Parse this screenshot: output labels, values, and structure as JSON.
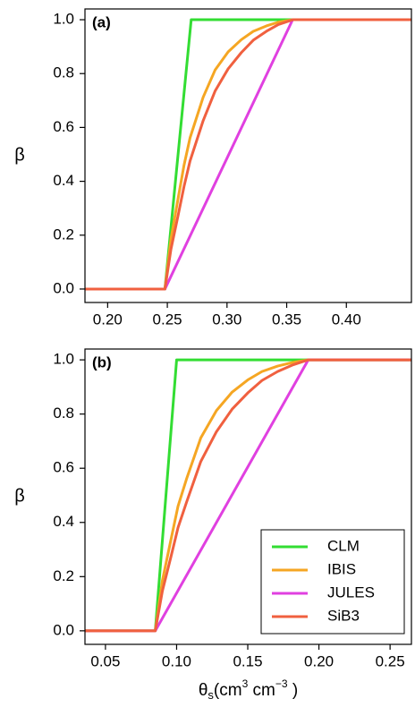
{
  "chart_data": [
    {
      "type": "line",
      "panel_label": "(a)",
      "ylabel": "β",
      "xlim": [
        0.181,
        0.4545
      ],
      "ylim": [
        -0.05,
        1.04
      ],
      "xticks": [
        {
          "value": 0.2,
          "label": "0.20"
        },
        {
          "value": 0.25,
          "label": "0.25"
        },
        {
          "value": 0.3,
          "label": "0.30"
        },
        {
          "value": 0.35,
          "label": "0.35"
        },
        {
          "value": 0.4,
          "label": "0.40"
        }
      ],
      "yticks": [
        {
          "value": 0,
          "label": "0.0"
        },
        {
          "value": 0.2,
          "label": "0.2"
        },
        {
          "value": 0.4,
          "label": "0.4"
        },
        {
          "value": 0.6,
          "label": "0.6"
        },
        {
          "value": 0.8,
          "label": "0.8"
        },
        {
          "value": 1,
          "label": "1.0"
        }
      ],
      "legend": false,
      "series": [
        {
          "name": "CLM",
          "color": "#33dd33",
          "x": [
            0.181,
            0.248,
            0.27,
            0.4545
          ],
          "values": [
            0,
            0,
            1,
            1
          ]
        },
        {
          "name": "IBIS",
          "color": "#f5a623",
          "x": [
            0.181,
            0.248,
            0.253,
            0.259,
            0.264,
            0.269,
            0.28,
            0.29,
            0.301,
            0.312,
            0.322,
            0.333,
            0.343,
            0.355,
            0.4545
          ],
          "values": [
            0,
            0,
            0.185,
            0.336,
            0.46,
            0.561,
            0.712,
            0.813,
            0.881,
            0.926,
            0.957,
            0.977,
            0.991,
            1,
            1
          ]
        },
        {
          "name": "JULES",
          "color": "#e040e0",
          "x": [
            0.181,
            0.248,
            0.355,
            0.4545
          ],
          "values": [
            0,
            0,
            1,
            1
          ]
        },
        {
          "name": "SiB3",
          "color": "#f0603f",
          "x": [
            0.181,
            0.248,
            0.253,
            0.259,
            0.264,
            0.269,
            0.28,
            0.29,
            0.301,
            0.312,
            0.322,
            0.333,
            0.343,
            0.355,
            0.4545
          ],
          "values": [
            0,
            0,
            0.147,
            0.273,
            0.381,
            0.475,
            0.625,
            0.735,
            0.818,
            0.878,
            0.924,
            0.957,
            0.982,
            1,
            1
          ]
        }
      ]
    },
    {
      "type": "line",
      "panel_label": "(b)",
      "ylabel": "β",
      "xlabel": [
        "θ",
        "s",
        "(cm",
        "3",
        " cm",
        "−3",
        " )"
      ],
      "xlim": [
        0.0356,
        0.265
      ],
      "ylim": [
        -0.05,
        1.04
      ],
      "xticks": [
        {
          "value": 0.05,
          "label": "0.05"
        },
        {
          "value": 0.1,
          "label": "0.10"
        },
        {
          "value": 0.15,
          "label": "0.15"
        },
        {
          "value": 0.2,
          "label": "0.20"
        },
        {
          "value": 0.25,
          "label": "0.25"
        }
      ],
      "yticks": [
        {
          "value": 0,
          "label": "0.0"
        },
        {
          "value": 0.2,
          "label": "0.2"
        },
        {
          "value": 0.4,
          "label": "0.4"
        },
        {
          "value": 0.6,
          "label": "0.6"
        },
        {
          "value": 0.8,
          "label": "0.8"
        },
        {
          "value": 1,
          "label": "1.0"
        }
      ],
      "legend": "lower right",
      "series": [
        {
          "name": "CLM",
          "color": "#33dd33",
          "x": [
            0.0356,
            0.085,
            0.1,
            0.265
          ],
          "values": [
            0,
            0,
            1,
            1
          ]
        },
        {
          "name": "IBIS",
          "color": "#f5a623",
          "x": [
            0.0356,
            0.085,
            0.09,
            0.096,
            0.101,
            0.107,
            0.117,
            0.128,
            0.139,
            0.15,
            0.16,
            0.171,
            0.182,
            0.1925,
            0.265
          ],
          "values": [
            0,
            0,
            0.185,
            0.336,
            0.46,
            0.561,
            0.712,
            0.813,
            0.881,
            0.926,
            0.957,
            0.977,
            0.991,
            1,
            1
          ]
        },
        {
          "name": "JULES",
          "color": "#e040e0",
          "x": [
            0.0356,
            0.085,
            0.1925,
            0.265
          ],
          "values": [
            0,
            0,
            1,
            1
          ]
        },
        {
          "name": "SiB3",
          "color": "#f0603f",
          "x": [
            0.0356,
            0.085,
            0.09,
            0.096,
            0.101,
            0.107,
            0.117,
            0.128,
            0.139,
            0.15,
            0.16,
            0.171,
            0.182,
            0.1925,
            0.265
          ],
          "values": [
            0,
            0,
            0.147,
            0.273,
            0.381,
            0.475,
            0.625,
            0.735,
            0.818,
            0.878,
            0.924,
            0.957,
            0.982,
            1,
            1
          ]
        }
      ]
    }
  ]
}
